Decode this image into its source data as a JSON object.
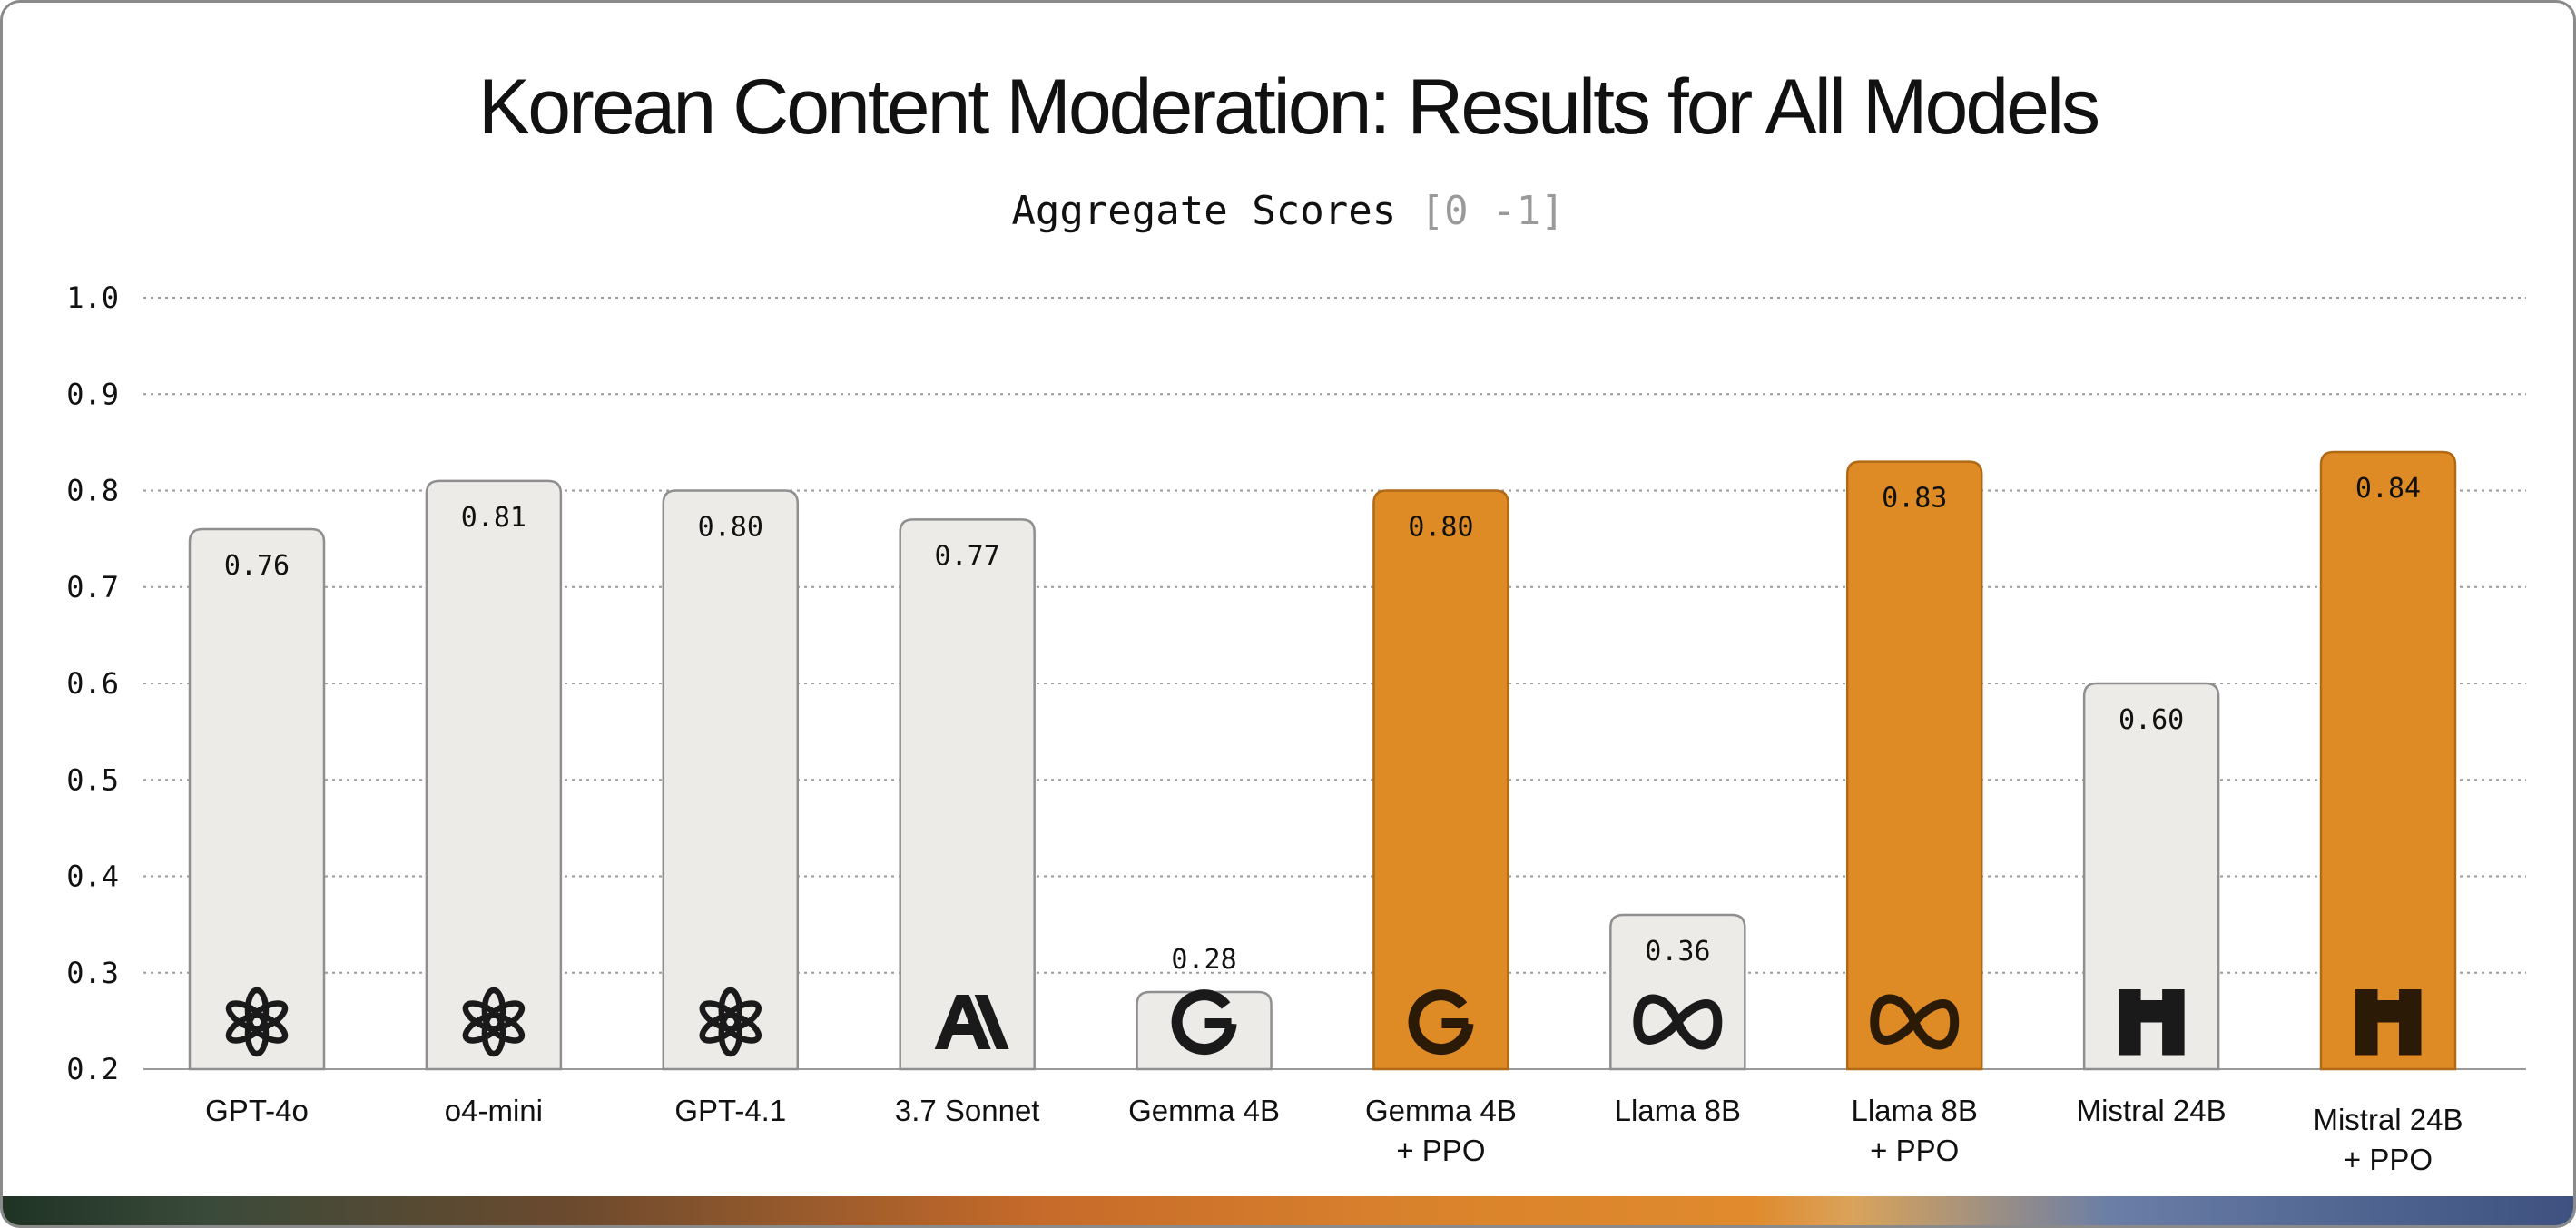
{
  "title": "Korean Content Moderation: Results for All Models",
  "subtitle": {
    "text": "Aggregate Scores",
    "range": "[0 -1]"
  },
  "colors": {
    "baseline_fill": "#ecebe8",
    "baseline_stroke": "#8f8f8f",
    "ppo_fill": "#de8b25",
    "ppo_stroke": "#b06a15",
    "grid": "#9a9a9a",
    "text": "#111111"
  },
  "chart_data": {
    "type": "bar",
    "title": "Korean Content Moderation: Results for All Models",
    "subtitle": "Aggregate Scores [0 -1]",
    "xlabel": "",
    "ylabel": "",
    "ylim": [
      0.2,
      1.0
    ],
    "yticks": [
      "0.2",
      "0.3",
      "0.4",
      "0.5",
      "0.6",
      "0.7",
      "0.8",
      "0.9",
      "1.0"
    ],
    "grid": true,
    "categories": [
      [
        "GPT-4o"
      ],
      [
        "o4-mini"
      ],
      [
        "GPT-4.1"
      ],
      [
        "3.7 Sonnet"
      ],
      [
        "Gemma 4B"
      ],
      [
        "Gemma 4B",
        "+ PPO"
      ],
      [
        "Llama 8B"
      ],
      [
        "Llama 8B",
        "+ PPO"
      ],
      [
        "Mistral 24B"
      ],
      [
        "Mistral 24B",
        "+ PPO"
      ]
    ],
    "values": [
      0.76,
      0.81,
      0.8,
      0.77,
      0.28,
      0.8,
      0.36,
      0.83,
      0.6,
      0.84
    ],
    "data_labels": [
      "0.76",
      "0.81",
      "0.80",
      "0.77",
      "0.28",
      "0.80",
      "0.36",
      "0.83",
      "0.60",
      "0.84"
    ],
    "highlighted": [
      false,
      false,
      false,
      false,
      false,
      true,
      false,
      true,
      false,
      true
    ],
    "icons": [
      "openai-icon",
      "openai-icon",
      "openai-icon",
      "anthropic-icon",
      "google-icon",
      "google-icon",
      "meta-icon",
      "meta-icon",
      "mistral-icon",
      "mistral-icon"
    ]
  }
}
